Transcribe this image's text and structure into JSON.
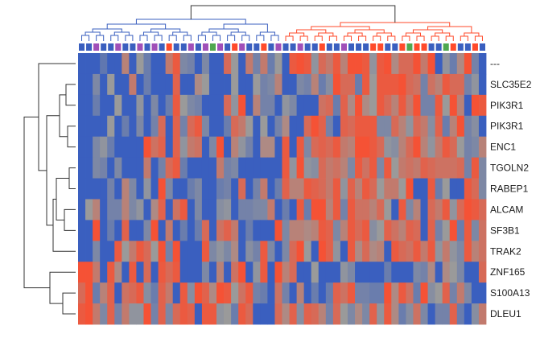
{
  "chart_data": {
    "type": "heatmap",
    "title": "",
    "xlabel": "",
    "ylabel": "",
    "rows": [
      "---",
      "SLC35E2",
      "PIK3R1",
      "PIK3R1",
      "ENC1",
      "TGOLN2",
      "RABEP1",
      "ALCAM",
      "SF3B1",
      "TRAK2",
      "ZNF165",
      "S100A13",
      "DLEU1"
    ],
    "columns_count": 56,
    "value_range": [
      -1,
      1
    ],
    "colors": {
      "low": "#3a5fbf",
      "mid": "#9a9a9a",
      "high": "#ff4a2a"
    },
    "column_annotation_colors": [
      "#3a5fbf",
      "#a04fb8",
      "#ff4a2a",
      "#4fa84f"
    ],
    "column_annotation": [
      0,
      0,
      1,
      0,
      0,
      1,
      0,
      0,
      1,
      0,
      1,
      0,
      2,
      0,
      0,
      1,
      0,
      1,
      3,
      1,
      0,
      2,
      1,
      0,
      0,
      2,
      0,
      1,
      0,
      0,
      1,
      0,
      0,
      2,
      0,
      0,
      1,
      0,
      0,
      0,
      2,
      2,
      0,
      0,
      2,
      3,
      2,
      2,
      0,
      0,
      3,
      2,
      0,
      0,
      2,
      0
    ],
    "dendrogram_colors": {
      "left": "#3a5fbf",
      "right": "#ff4a2a",
      "trunk": "#333333"
    },
    "row_dendrogram_color": "#333333",
    "values": [
      [
        -1,
        -1,
        -1,
        -0.6,
        -1,
        -1,
        0.3,
        -1,
        0,
        -0.5,
        -1,
        -1,
        0.4,
        0.8,
        -0.3,
        -0.4,
        -1,
        -0.3,
        -1,
        -1,
        0.6,
        0,
        -1,
        0.4,
        -0.4,
        0.4,
        -0.5,
        0,
        -1,
        0.8,
        0.9,
        0.8,
        -0.1,
        0.6,
        0.4,
        0.8,
        0.3,
        0.9,
        0.9,
        0.8,
        -0.1,
        0.8,
        0.9,
        0.2,
        0.6,
        0.6,
        0.9,
        0.4,
        0.9,
        -1,
        -0.1,
        -0.5,
        0.2,
        0.9,
        -0.4,
        -1
      ],
      [
        -1,
        -1,
        -0.3,
        -1,
        0,
        -1,
        -1,
        0.4,
        -1,
        -0.5,
        -1,
        -1,
        -1,
        0.7,
        -1,
        -1,
        0.2,
        0,
        -1,
        -1,
        -1,
        0,
        -1,
        -1,
        0,
        -0.4,
        -0.3,
        0.3,
        -1,
        -1,
        -0.3,
        -0.4,
        0.3,
        -0.5,
        -0.2,
        0.9,
        0.6,
        0.6,
        -0.5,
        0.8,
        0,
        0.8,
        0.8,
        0.8,
        0.9,
        0.6,
        0.5,
        -0.4,
        0.5,
        0.3,
        0.8,
        0.6,
        0.6,
        -0.4,
        -0.1,
        -1
      ],
      [
        -1,
        -1,
        -0.5,
        -1,
        -1,
        0,
        -1,
        -1,
        -0.1,
        -1,
        -0.3,
        -1,
        -0.5,
        0.8,
        0,
        -0.3,
        -0.4,
        -1,
        -1,
        -1,
        0.6,
        -0.1,
        0.9,
        -1,
        0.3,
        -0.4,
        -0.4,
        -1,
        -0.1,
        -0.3,
        -1,
        -1,
        -1,
        0.5,
        0.6,
        -0.5,
        0.7,
        0.2,
        0.9,
        0.2,
        0,
        0.8,
        0.6,
        0.3,
        0.8,
        0.4,
        0.9,
        -0.4,
        -0.4,
        0.8,
        0,
        0.9,
        0.3,
        -1,
        0.9,
        0.8
      ],
      [
        -1,
        -1,
        -1,
        -1,
        0,
        -1,
        -0.5,
        -1,
        -0.3,
        -1,
        -0.4,
        0.6,
        -1,
        0.7,
        -0.4,
        0.6,
        0.8,
        -0.3,
        -1,
        -1,
        -0.5,
        0.6,
        0.4,
        0,
        -1,
        0,
        -1,
        -0.4,
        0.2,
        -1,
        -1,
        0.6,
        0.9,
        0.7,
        -0.4,
        -1,
        0.7,
        0.6,
        0.8,
        0.8,
        0.8,
        -0.3,
        -0.3,
        0.6,
        0.3,
        -0.1,
        0.6,
        0.4,
        -0.2,
        0.7,
        -0.5,
        0.3,
        0.9,
        -0.4,
        -0.2,
        -1
      ],
      [
        -1,
        -1,
        -0.3,
        -0.1,
        -0.5,
        -1,
        -1,
        -1,
        -1,
        0.9,
        0.5,
        0.7,
        -1,
        0.7,
        -0.1,
        0.4,
        0.5,
        -1,
        -0.3,
        0.9,
        -1,
        0.3,
        -0.1,
        -0.4,
        -1,
        0.2,
        0.2,
        -1,
        0.8,
        -1,
        0.8,
        -0.3,
        0.6,
        0.7,
        0.6,
        0.8,
        0.4,
        0.3,
        0.9,
        0.9,
        0.8,
        0.6,
        -0.1,
        -0.2,
        0.3,
        0.6,
        0.9,
        0.3,
        -0.1,
        0.4,
        0.8,
        0.6,
        0,
        -0.4,
        -0.3,
        0.3
      ],
      [
        -1,
        -1,
        -0.3,
        -0.4,
        -1,
        -0.3,
        -1,
        -1,
        -1,
        0.4,
        -1,
        -0.4,
        0.6,
        0.8,
        -0.5,
        -1,
        -1,
        -1,
        -1,
        0.4,
        -0.4,
        -0.3,
        -1,
        -1,
        -1,
        -1,
        -1,
        -1,
        0.8,
        -0.1,
        0.9,
        -0.1,
        -0.2,
        0.6,
        0.4,
        0.5,
        0.3,
        -0.3,
        0.8,
        0.5,
        0.8,
        -0.3,
        0.8,
        0,
        0.4,
        0.5,
        0.4,
        0.7,
        0.6,
        0.5,
        0.5,
        0.5,
        0.6,
        -0.4,
        0.8,
        -0.3
      ],
      [
        -1,
        -1,
        -1,
        -1,
        -0.4,
        -1,
        0.3,
        -0.3,
        -1,
        -0.1,
        -1,
        0.9,
        -0.3,
        -1,
        -1,
        -0.5,
        -0.3,
        -1,
        -1,
        -0.5,
        -0.4,
        -1,
        0.6,
        -1,
        -0.4,
        0.4,
        -1,
        -0.5,
        0.7,
        0.3,
        0.3,
        0.8,
        0.7,
        0.6,
        0.4,
        0.8,
        -0.1,
        0.7,
        0.3,
        0.8,
        0.6,
        0,
        0.4,
        0.4,
        0,
        0.9,
        -1,
        -1,
        0.8,
        -0.5,
        0,
        -1,
        -1,
        0.8,
        0.6,
        -0.3
      ],
      [
        -1,
        0,
        0.3,
        -1,
        -0.4,
        -0.4,
        0.3,
        -0.3,
        -0.1,
        -1,
        0.2,
        0.7,
        -1,
        0.5,
        0.8,
        -1,
        -0.3,
        -1,
        -1,
        -0.2,
        -0.1,
        -1,
        -0.4,
        -0.4,
        -0.3,
        -0.3,
        0.4,
        -1,
        -0.5,
        -1,
        0.8,
        -0.5,
        0.9,
        0.9,
        0.3,
        0.8,
        -0.4,
        0.8,
        0.5,
        0.5,
        0.3,
        0.6,
        0,
        -1,
        0.8,
        -0.3,
        0.3,
        -1,
        0.6,
        0.4,
        0.8,
        -0.1,
        0.6,
        0.9,
        0.8,
        0.6
      ],
      [
        -1,
        -1,
        0.9,
        -1,
        -0.5,
        -1,
        0.7,
        -1,
        -1,
        -0.3,
        0.9,
        -1,
        0.4,
        -1,
        -0.5,
        -1,
        -0.5,
        0.6,
        -1,
        0.5,
        0.7,
        0.4,
        -1,
        -0.5,
        -1,
        -1,
        -1,
        0.9,
        -0.3,
        0.3,
        0.3,
        0.2,
        0.3,
        0.8,
        0.7,
        -0.3,
        0.3,
        0.8,
        0.6,
        0.8,
        -0.2,
        0,
        0.7,
        0.5,
        0.3,
        0.7,
        0.6,
        -1,
        0.7,
        -0.4,
        0,
        0.9,
        -0.5,
        0.8,
        -0.3,
        0.5
      ],
      [
        -1,
        -1,
        -0.3,
        -1,
        -1,
        0.8,
        0,
        0.4,
        0.8,
        0.6,
        0,
        0.9,
        -0.4,
        0.9,
        -1,
        -1,
        -1,
        0.8,
        -0.3,
        -0.1,
        -0.3,
        0.2,
        -1,
        -0.2,
        -0.4,
        0.8,
        -0.3,
        -1,
        -0.3,
        0.6,
        0.9,
        0,
        -1,
        0.9,
        0.7,
        -0.1,
        -1,
        0.8,
        0.2,
        0.6,
        0.2,
        0.3,
        -1,
        0.8,
        0.6,
        0.5,
        0.8,
        0.4,
        0.8,
        -0.1,
        0.4,
        -0.1,
        -0.3,
        0.8,
        0.3,
        0.5
      ],
      [
        0.9,
        0.9,
        0.4,
        -1,
        0.8,
        0.2,
        -1,
        0.8,
        -1,
        0.6,
        -1,
        0.8,
        0.6,
        0.8,
        -1,
        -1,
        -1,
        -0.3,
        -1,
        0.3,
        -1,
        0.5,
        0.9,
        -1,
        -0.1,
        0.8,
        -1,
        0.9,
        0.3,
        0.6,
        -1,
        -1,
        0,
        -1,
        -1,
        -1,
        -0.1,
        -0.3,
        -1,
        -1,
        -1,
        -1,
        -0.5,
        -1,
        -1,
        -1,
        -0.3,
        -0.4,
        0.2,
        -1,
        0.2,
        0,
        -0.3,
        -1,
        -1,
        0.6
      ],
      [
        0.6,
        0.9,
        -0.5,
        0.3,
        0.7,
        -1,
        0.5,
        0.6,
        0.8,
        -0.2,
        -0.5,
        0.7,
        0.4,
        -1,
        0.8,
        -0.2,
        0.9,
        0.7,
        0.2,
        0.9,
        0.8,
        0,
        0.5,
        0.8,
        -0.4,
        -0.5,
        -1,
        0.5,
        -0.4,
        -1,
        0.3,
        -1,
        -0.5,
        -1,
        -0.5,
        0.7,
        0.5,
        0.8,
        -0.4,
        -0.4,
        -0.5,
        -0.5,
        0.9,
        0.2,
        0.8,
        0.5,
        -0.5,
        0.9,
        -0.2,
        0,
        0.7,
        -0.4,
        0.4,
        -0.3,
        -1,
        -1
      ],
      [
        0.8,
        0.9,
        0.4,
        -0.3,
        0.7,
        -0.4,
        0.4,
        -0.1,
        -0.1,
        0.9,
        -0.4,
        0.7,
        -0.3,
        0.6,
        0.8,
        0.7,
        -1,
        0.8,
        0.8,
        -0.1,
        0,
        -0.5,
        0.8,
        0.6,
        -1,
        -1,
        -1,
        0.6,
        0.2,
        0.7,
        -0.2,
        0.7,
        0.6,
        0.3,
        -0.4,
        0.6,
        0,
        -0.3,
        0.2,
        -0.3,
        0.7,
        -0.1,
        0.8,
        0.2,
        -0.5,
        -0.2,
        0.5,
        -0.3,
        -1,
        -0.4,
        -0.4,
        0.7,
        -0.5,
        -1,
        -0.2,
        0.4
      ]
    ]
  }
}
